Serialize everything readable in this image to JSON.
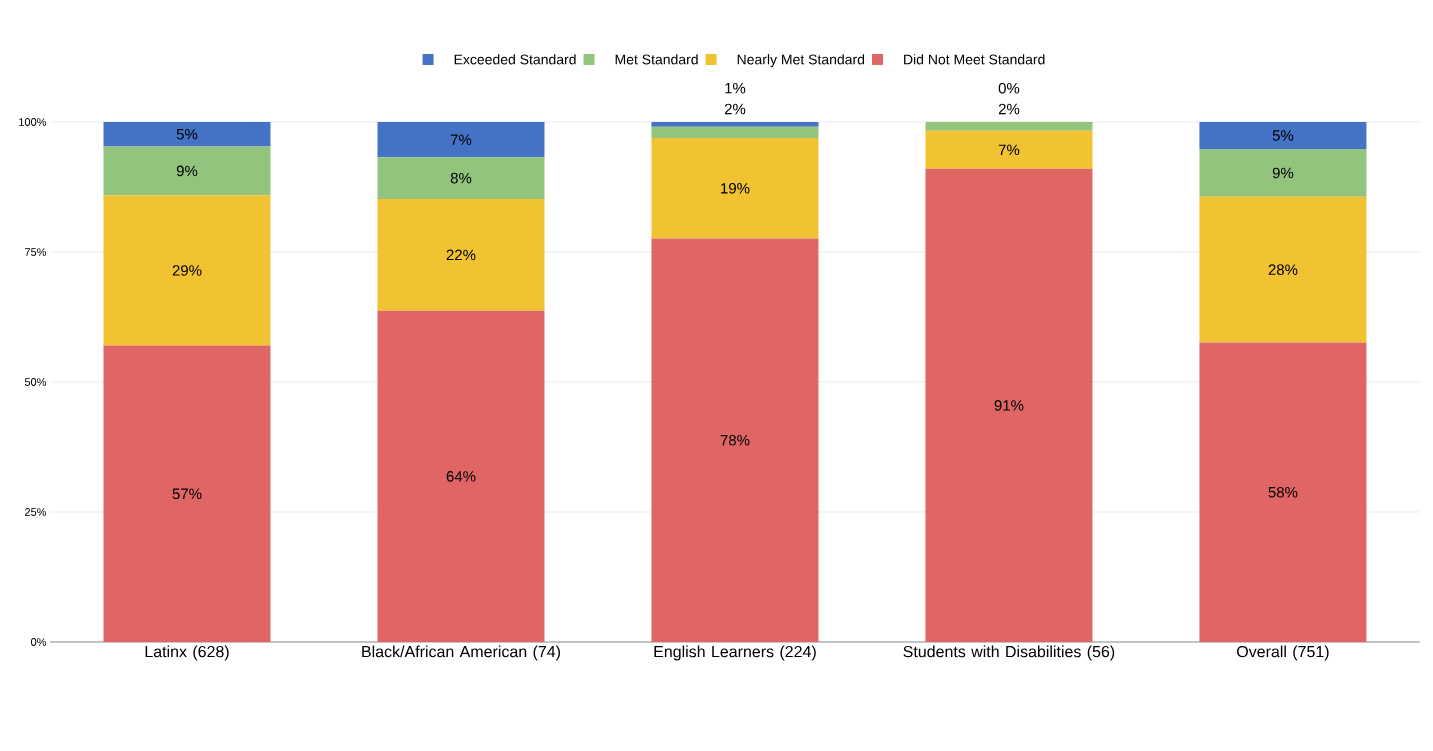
{
  "chart_data": {
    "type": "bar",
    "stacked": true,
    "categories": [
      "Latinx (628)",
      "Black/African American (74)",
      "English Learners (224)",
      "Students with Disabilities (56)",
      "Overall (751)"
    ],
    "series": [
      {
        "name": "Did Not Meet Standard",
        "color": "#e06666",
        "values": [
          57.0,
          63.7,
          77.6,
          91.0,
          57.6
        ],
        "value_labels": [
          "57%",
          "64%",
          "78%",
          "91%",
          "58%"
        ]
      },
      {
        "name": "Nearly Met Standard",
        "color": "#f1c232",
        "values": [
          28.9,
          21.5,
          19.3,
          7.3,
          28.0
        ],
        "value_labels": [
          "29%",
          "22%",
          "19%",
          "7%",
          "28%"
        ]
      },
      {
        "name": "Met Standard",
        "color": "#93c47d",
        "values": [
          9.4,
          8.0,
          2.2,
          1.7,
          9.2
        ],
        "value_labels": [
          "9%",
          "8%",
          "2%",
          "2%",
          "9%"
        ]
      },
      {
        "name": "Exceeded Standard",
        "color": "#4472c4",
        "values": [
          4.7,
          6.8,
          0.9,
          0.0,
          5.2
        ],
        "value_labels": [
          "5%",
          "7%",
          "1%",
          "0%",
          "5%"
        ]
      }
    ],
    "ylim": [
      0,
      100
    ],
    "yticks": [
      {
        "value": 0,
        "label": "0%"
      },
      {
        "value": 25,
        "label": "25%"
      },
      {
        "value": 50,
        "label": "50%"
      },
      {
        "value": 75,
        "label": "75%"
      },
      {
        "value": 100,
        "label": "100%"
      }
    ],
    "grid": "y",
    "legend": "top"
  }
}
